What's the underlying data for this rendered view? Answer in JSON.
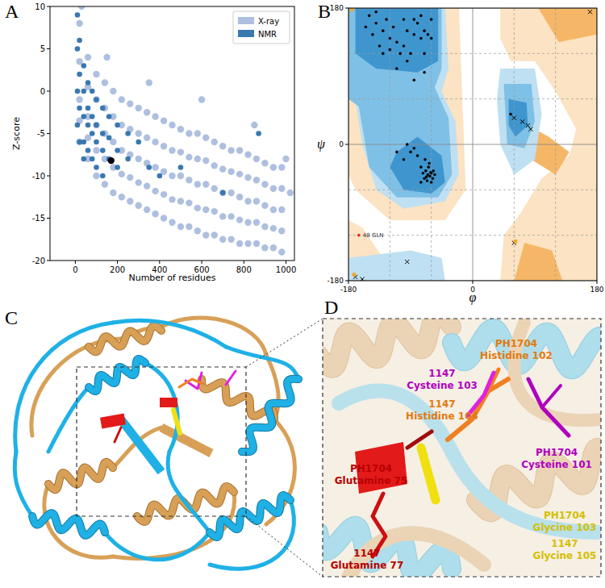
{
  "chart_data": [
    {
      "type": "scatter",
      "title": "A",
      "x_label": "Number of residues",
      "y_label": "Z-score",
      "xlim": [
        -120,
        1040
      ],
      "ylim": [
        -20,
        10
      ],
      "xticks": [
        0,
        200,
        400,
        600,
        800,
        1000
      ],
      "yticks": [
        -20,
        -15,
        -10,
        -5,
        0,
        5,
        10
      ],
      "legend": "upper right",
      "grid": false,
      "series": [
        {
          "name": "X-ray",
          "color": "#aebfdf",
          "marker": "circle",
          "x": [
            20,
            20,
            20,
            20,
            20,
            60,
            60,
            60,
            60,
            60,
            100,
            100,
            100,
            100,
            100,
            140,
            140,
            140,
            140,
            140,
            180,
            180,
            180,
            180,
            180,
            220,
            220,
            220,
            220,
            220,
            260,
            260,
            260,
            260,
            260,
            300,
            300,
            300,
            300,
            300,
            340,
            340,
            340,
            340,
            340,
            380,
            380,
            380,
            380,
            380,
            420,
            420,
            420,
            420,
            420,
            460,
            460,
            460,
            460,
            460,
            500,
            500,
            500,
            500,
            500,
            540,
            540,
            540,
            540,
            540,
            580,
            580,
            580,
            580,
            580,
            620,
            620,
            620,
            620,
            620,
            660,
            660,
            660,
            660,
            660,
            700,
            700,
            700,
            700,
            700,
            740,
            740,
            740,
            740,
            740,
            780,
            780,
            780,
            780,
            780,
            820,
            820,
            820,
            820,
            820,
            860,
            860,
            860,
            860,
            860,
            900,
            900,
            900,
            900,
            900,
            940,
            940,
            940,
            940,
            940,
            980,
            980,
            980,
            980,
            980,
            30,
            150,
            350,
            600,
            850,
            1000,
            1020
          ],
          "values": [
            8,
            3.5,
            -1,
            -3.5,
            -6,
            4,
            0.5,
            -3,
            -5.5,
            -8,
            2,
            -1,
            -4,
            -7,
            -10,
            1,
            -2,
            -5,
            -8,
            -11,
            0,
            -3,
            -6,
            -9,
            -12,
            -1,
            -4,
            -7,
            -9.8,
            -12.5,
            -1.5,
            -4.5,
            -7.5,
            -10.2,
            -13,
            -2,
            -5,
            -8,
            -10.8,
            -13.5,
            -2.5,
            -5.5,
            -8.5,
            -11.2,
            -14,
            -3,
            -6,
            -9,
            -11.8,
            -14.5,
            -3.5,
            -6.5,
            -9.5,
            -12.2,
            -15,
            -4,
            -7,
            -10,
            -12.8,
            -15.5,
            -4.5,
            -7.2,
            -10,
            -13,
            -16,
            -5,
            -7.8,
            -10.5,
            -13.2,
            -16,
            -5,
            -8,
            -11,
            -13.8,
            -16.5,
            -5.5,
            -8.2,
            -11,
            -14,
            -17,
            -6,
            -8.8,
            -11.5,
            -14.2,
            -17,
            -6.5,
            -9.2,
            -12,
            -14.8,
            -17.5,
            -7,
            -9.5,
            -12,
            -14.8,
            -17.5,
            -7,
            -9.8,
            -12.5,
            -15.2,
            -18,
            -7.5,
            -10.2,
            -13,
            -15.5,
            -18,
            -8,
            -10.5,
            -13,
            -15.5,
            -18,
            -8.5,
            -11,
            -13.5,
            -16,
            -18.5,
            -9,
            -11.5,
            -14,
            -16.2,
            -18.5,
            -9,
            -11.5,
            -14,
            -16.5,
            -19,
            10,
            4,
            1,
            -1,
            -4,
            -8,
            -12
          ]
        },
        {
          "name": "NMR",
          "color": "#3a78b0",
          "marker": "circle",
          "x": [
            10,
            10,
            10,
            10,
            20,
            20,
            20,
            20,
            40,
            40,
            40,
            40,
            40,
            60,
            60,
            60,
            60,
            80,
            80,
            80,
            80,
            100,
            100,
            100,
            100,
            130,
            130,
            130,
            130,
            160,
            160,
            160,
            200,
            200,
            200,
            250,
            250,
            300,
            350,
            400,
            500,
            700,
            870
          ],
          "values": [
            9,
            5,
            0,
            -4,
            6,
            2,
            -2,
            -6,
            3,
            0,
            -3,
            -6,
            -8,
            1,
            -2,
            -4,
            -7,
            0,
            -3,
            -5,
            -8,
            -1,
            -4,
            -6,
            -9,
            -2,
            -5,
            -7,
            -10,
            -3,
            -5.5,
            -8,
            -4,
            -7,
            -9,
            -5,
            -8,
            -6,
            -9,
            -10,
            -9,
            -12,
            -5
          ]
        },
        {
          "color": "#000000",
          "marker": "circle",
          "x": [
            170
          ],
          "values": [
            -8.2
          ]
        }
      ]
    },
    {
      "type": "scatter",
      "title": "B",
      "x_label": "φ",
      "y_label": "ψ",
      "xlim": [
        -180,
        180
      ],
      "ylim": [
        -180,
        180
      ],
      "xticks": [
        -180,
        0,
        180
      ],
      "yticks": [
        -180,
        0,
        180
      ],
      "grid": true,
      "series": [
        {
          "color": "#000000",
          "marker": "circle",
          "x": [
            -140,
            -130,
            -120,
            -110,
            -100,
            -95,
            -85,
            -80,
            -75,
            -70,
            -65,
            -125,
            -135,
            -105,
            -90,
            -150,
            -60,
            -70,
            -115,
            -100,
            -145,
            -85,
            -120,
            -95,
            -110,
            -75,
            -60,
            -130,
            -155,
            -140,
            -65,
            -62,
            -60,
            -68,
            -70,
            -58,
            -64,
            -66,
            -72,
            -60,
            -55,
            -75,
            -63,
            -69,
            -80,
            -90,
            -85,
            -95,
            -100,
            -110,
            -75,
            -57,
            -67,
            -61,
            -85,
            -70,
            55
          ],
          "values": [
            160,
            150,
            140,
            135,
            130,
            150,
            145,
            160,
            140,
            150,
            145,
            165,
            130,
            120,
            120,
            170,
            140,
            120,
            155,
            165,
            145,
            165,
            125,
            110,
            100,
            170,
            165,
            120,
            155,
            175,
            -40,
            -42,
            -38,
            -35,
            -45,
            -45,
            -30,
            -48,
            -38,
            -50,
            -40,
            -30,
            -25,
            -20,
            -15,
            -10,
            -5,
            0,
            -20,
            -10,
            -50,
            -35,
            -43,
            -37,
            85,
            95,
            40
          ]
        },
        {
          "color": "#000000",
          "marker": "x",
          "x": [
            60,
            72,
            80,
            84,
            170,
            60,
            -95,
            -170,
            -160
          ],
          "values": [
            35,
            30,
            25,
            20,
            175,
            -130,
            -155,
            -175,
            -178
          ]
        },
        {
          "color": "#f5a623",
          "marker": "square",
          "x": [
            -172,
            62,
            -175
          ],
          "values": [
            -172,
            -128,
            178
          ]
        },
        {
          "color": "#e8251f",
          "marker": "circle",
          "x": [
            -165
          ],
          "values": [
            -120
          ]
        }
      ],
      "annotations": [
        {
          "x": -165,
          "y": -120,
          "text": "48 GLN"
        }
      ]
    }
  ],
  "figure": {
    "structure": {
      "title": "C"
    },
    "zoom": {
      "title": "D",
      "labels": [
        {
          "line1": "1147",
          "line2": "Cysteine 103",
          "color": "#b000c0"
        },
        {
          "line1": "PH1704",
          "line2": "Histidine 102",
          "color": "#e07a10"
        },
        {
          "line1": "1147",
          "line2": "Histidine 104",
          "color": "#e07a10"
        },
        {
          "line1": "PH1704",
          "line2": "Cysteine 101",
          "color": "#b000c0"
        },
        {
          "line1": "PH1704",
          "line2": "Glutamine 75",
          "color": "#b80000"
        },
        {
          "line1": "1147",
          "line2": "Glutamine 77",
          "color": "#b80000"
        },
        {
          "line1": "PH1704",
          "line2": "Glycine 103",
          "color": "#d4c000"
        },
        {
          "line1": "1147",
          "line2": "Glycine 105",
          "color": "#d4c000"
        }
      ]
    }
  }
}
